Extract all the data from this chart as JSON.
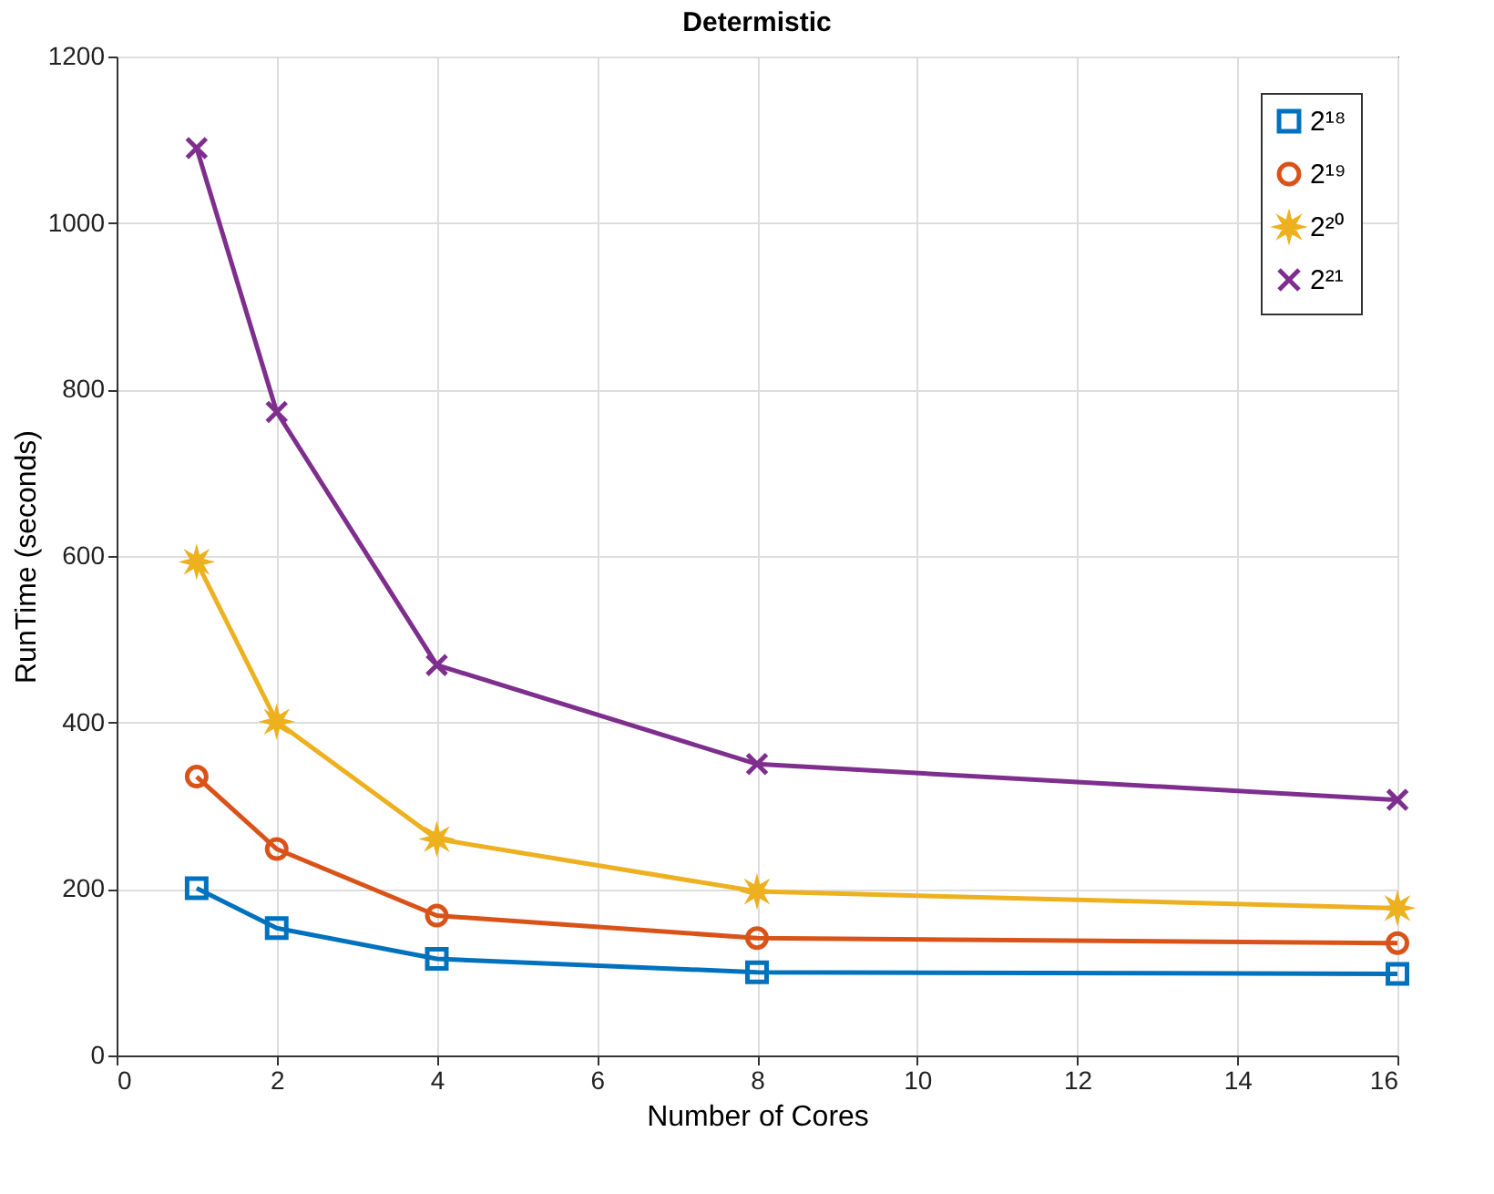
{
  "chart_data": {
    "type": "line",
    "title": "Determistic",
    "xlabel": "Number of Cores",
    "ylabel": "RunTime (seconds)",
    "x": [
      1,
      2,
      4,
      8,
      16
    ],
    "series": [
      {
        "name": "2¹⁸",
        "color": "#0072bd",
        "marker": "square",
        "values": [
          201,
          153,
          116,
          100,
          98
        ]
      },
      {
        "name": "2¹⁹",
        "color": "#d95319",
        "marker": "circle",
        "values": [
          335,
          248,
          168,
          141,
          135
        ]
      },
      {
        "name": "2²⁰",
        "color": "#edb120",
        "marker": "star",
        "values": [
          593,
          401,
          260,
          197,
          177
        ]
      },
      {
        "name": "2²¹",
        "color": "#7e2f8e",
        "marker": "cross",
        "values": [
          1090,
          773,
          469,
          350,
          307
        ]
      }
    ],
    "xlim": [
      0,
      16
    ],
    "xticks": [
      0,
      2,
      4,
      6,
      8,
      10,
      12,
      14,
      16
    ],
    "ylim": [
      0,
      1200
    ],
    "yticks": [
      0,
      200,
      400,
      600,
      800,
      1000,
      1200
    ],
    "grid": true,
    "legend": "top right",
    "line_style": "solid"
  }
}
